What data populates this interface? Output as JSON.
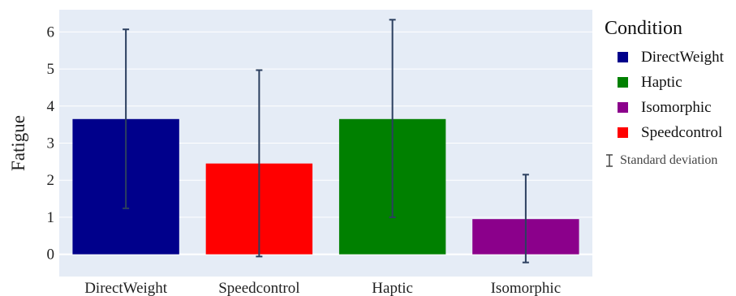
{
  "chart_data": {
    "type": "bar",
    "categories": [
      "DirectWeight",
      "Speedcontrol",
      "Haptic",
      "Isomorphic"
    ],
    "values": [
      3.65,
      2.45,
      3.65,
      0.95
    ],
    "error_upper": [
      6.07,
      4.97,
      6.33,
      2.15
    ],
    "error_lower": [
      1.24,
      -0.06,
      1.0,
      -0.22
    ],
    "colors": [
      "#00008B",
      "#FF0000",
      "#008000",
      "#8B008B"
    ],
    "error_bar_color": "#2B3F5F",
    "ylabel": "Fatigue",
    "xlabel": "",
    "yticks": [
      0,
      1,
      2,
      3,
      4,
      5,
      6
    ],
    "ylim": [
      -0.6,
      6.6
    ],
    "grid": true,
    "plot_background": "#E5ECF6",
    "legend": {
      "title": "Condition",
      "placement": "right",
      "entries": [
        {
          "label": "DirectWeight",
          "color": "#00008B"
        },
        {
          "label": "Haptic",
          "color": "#008000"
        },
        {
          "label": "Isomorphic",
          "color": "#8B008B"
        },
        {
          "label": "Speedcontrol",
          "color": "#FF0000"
        }
      ],
      "sd_label": "Standard deviation"
    }
  }
}
